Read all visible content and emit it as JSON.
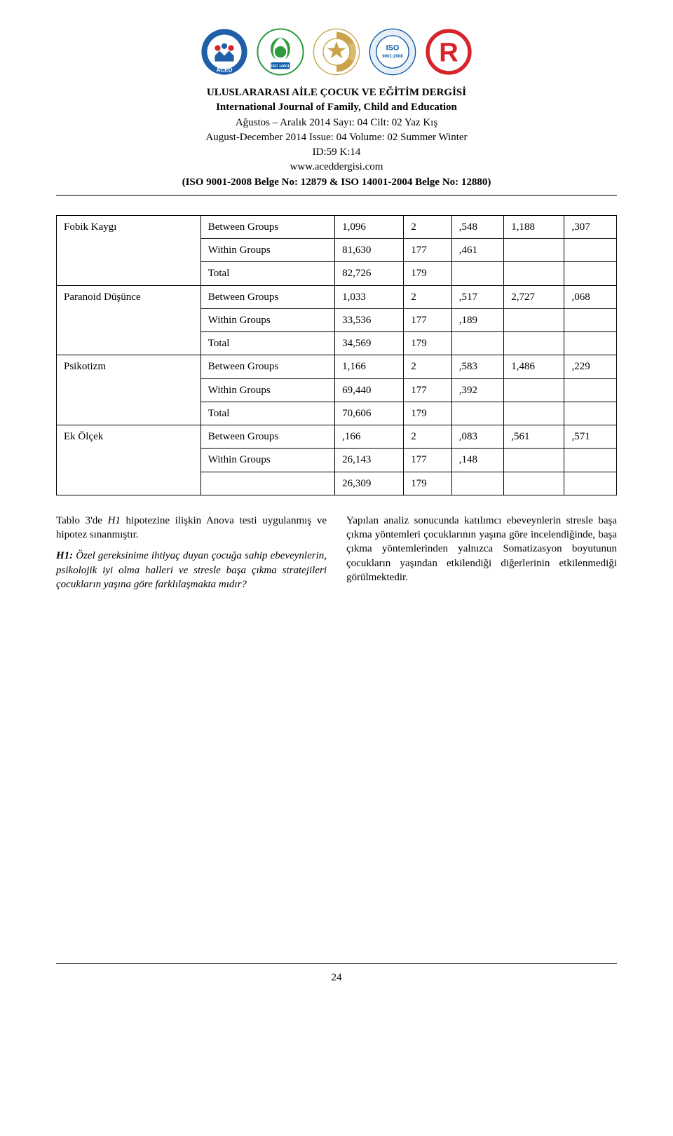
{
  "header": {
    "title_tr": "ULUSLARARASI AİLE ÇOCUK VE EĞİTİM DERGİSİ",
    "title_en": "International Journal of Family, Child and Education",
    "issue_tr": "Ağustos – Aralık 2014 Sayı: 04 Cilt: 02 Yaz Kış",
    "issue_en": "August-December 2014 Issue: 04 Volume: 02 Summer Winter",
    "id_line": "ID:59 K:14",
    "url": "www.aceddergisi.com",
    "iso_line": "(ISO 9001-2008 Belge No: 12879 & ISO 14001-2004 Belge No: 12880)"
  },
  "logos": {
    "aced_label": "ACED",
    "iso14001_label": "ISO 14001",
    "registered_label": "Registered",
    "iso9001_label": "ISO 9001:2008",
    "trademark_label": "®"
  },
  "table": {
    "groups": [
      {
        "label": "Fobik Kaygı",
        "rows": [
          {
            "g": "Between Groups",
            "v1": "1,096",
            "v2": "2",
            "v3": ",548",
            "v4": "1,188",
            "v5": ",307"
          },
          {
            "g": "Within Groups",
            "v1": "81,630",
            "v2": "177",
            "v3": ",461",
            "v4": "",
            "v5": ""
          },
          {
            "g": "Total",
            "v1": "82,726",
            "v2": "179",
            "v3": "",
            "v4": "",
            "v5": ""
          }
        ]
      },
      {
        "label": "Paranoid Düşünce",
        "rows": [
          {
            "g": "Between Groups",
            "v1": "1,033",
            "v2": "2",
            "v3": ",517",
            "v4": "2,727",
            "v5": ",068"
          },
          {
            "g": "Within Groups",
            "v1": "33,536",
            "v2": "177",
            "v3": ",189",
            "v4": "",
            "v5": ""
          },
          {
            "g": "Total",
            "v1": "34,569",
            "v2": "179",
            "v3": "",
            "v4": "",
            "v5": ""
          }
        ]
      },
      {
        "label": "Psikotizm",
        "rows": [
          {
            "g": "Between Groups",
            "v1": "1,166",
            "v2": "2",
            "v3": ",583",
            "v4": "1,486",
            "v5": ",229"
          },
          {
            "g": "Within Groups",
            "v1": "69,440",
            "v2": "177",
            "v3": ",392",
            "v4": "",
            "v5": ""
          },
          {
            "g": "Total",
            "v1": "70,606",
            "v2": "179",
            "v3": "",
            "v4": "",
            "v5": ""
          }
        ]
      },
      {
        "label": "Ek Ölçek",
        "rows": [
          {
            "g": "Between Groups",
            "v1": ",166",
            "v2": "2",
            "v3": ",083",
            "v4": ",561",
            "v5": ",571"
          },
          {
            "g": "Within Groups",
            "v1": "26,143",
            "v2": "177",
            "v3": ",148",
            "v4": "",
            "v5": ""
          },
          {
            "g": "",
            "v1": "26,309",
            "v2": "179",
            "v3": "",
            "v4": "",
            "v5": ""
          }
        ]
      }
    ]
  },
  "body": {
    "left_p1": "Tablo 3'de H1 hipotezine ilişkin Anova testi uygulanmış ve hipotez sınanmıştır.",
    "left_p2_prefix": "H1:",
    "left_p2_rest": " Özel gereksinime ihtiyaç duyan çocuğa sahip ebeveynlerin, psikolojik iyi olma halleri ve stresle başa çıkma stratejileri çocukların yaşına göre farklılaşmakta mıdır?",
    "right_p1": "Yapılan analiz sonucunda katılımcı ebeveynlerin stresle başa çıkma yöntemleri çocuklarının yaşına göre incelendiğinde, başa çıkma yöntemlerinden yalnızca Somatizasyon boyutunun çocukların yaşından etkilendiği diğerlerinin etkilenmediği görülmektedir."
  },
  "page_number": "24",
  "colors": {
    "text": "#000000",
    "background": "#ffffff",
    "border": "#000000",
    "aced_blue": "#1f5fa8",
    "aced_red": "#d8232a",
    "env_green": "#2e9b3f",
    "env_blue": "#0a5aa6",
    "reg_gold": "#c9a24a",
    "iso_blue": "#0a5aa6",
    "iso_bg": "#e8eef6",
    "tm_red": "#d8232a"
  }
}
